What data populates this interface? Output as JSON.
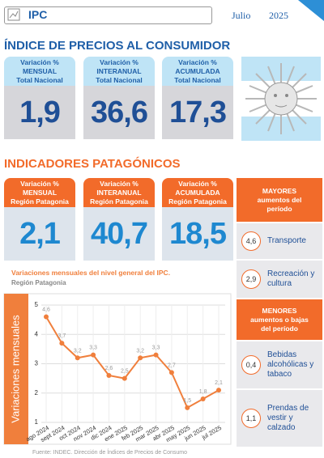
{
  "header": {
    "title": "IPC",
    "month": "Julio",
    "year": "2025"
  },
  "national": {
    "title": "ÍNDICE DE PRECIOS AL CONSUMIDOR",
    "cards": [
      {
        "lines": [
          "Variación %",
          "MENSUAL",
          "Total Nacional"
        ],
        "value": "1,9"
      },
      {
        "lines": [
          "Variación %",
          "INTERANUAL",
          "Total Nacional"
        ],
        "value": "36,6"
      },
      {
        "lines": [
          "Variación %",
          "ACUMULADA",
          "Total Nacional"
        ],
        "value": "17,3"
      }
    ]
  },
  "patagonia": {
    "title": "INDICADORES PATAGÓNICOS",
    "cards": [
      {
        "lines": [
          "Variación %",
          "MENSUAL",
          "Región Patagonia"
        ],
        "value": "2,1"
      },
      {
        "lines": [
          "Variación %",
          "INTERANUAL",
          "Región Patagonia"
        ],
        "value": "40,7"
      },
      {
        "lines": [
          "Variación %",
          "ACUMULADA",
          "Región Patagonia"
        ],
        "value": "18,5"
      }
    ]
  },
  "highlights": {
    "top": {
      "title": [
        "MAYORES",
        "aumentos del",
        "período"
      ],
      "items": [
        {
          "value": "4,6",
          "label": [
            "Transporte"
          ]
        },
        {
          "value": "2,9",
          "label": [
            "Recreación y",
            "cultura"
          ]
        }
      ]
    },
    "bottom": {
      "title": [
        "MENORES",
        "aumentos o bajas",
        "del período"
      ],
      "items": [
        {
          "value": "0,4",
          "label": [
            "Bebidas",
            "alcohólicas y",
            "tabaco"
          ]
        },
        {
          "value": "1,1",
          "label": [
            "Prendas de",
            "vestir y",
            "calzado"
          ]
        }
      ]
    }
  },
  "chart_data": {
    "type": "line",
    "title": "Variaciones mensuales del nivel general del IPC.",
    "subtitle": "Región Patagonia",
    "y_label": "Variaciones mensuales",
    "categories": [
      "ago 2024",
      "sept 2024",
      "oct 2024",
      "nov 2024",
      "dic 2024",
      "ene 2025",
      "feb 2025",
      "mar 2025",
      "abr 2025",
      "may 2025",
      "jun 2025",
      "jul 2025"
    ],
    "values": [
      4.6,
      3.7,
      3.2,
      3.3,
      2.6,
      2.5,
      3.2,
      3.3,
      2.7,
      1.5,
      1.8,
      2.1
    ],
    "value_labels": [
      "4,6",
      "3,7",
      "3,2",
      "3,3",
      "2,6",
      "2,5",
      "3,2",
      "3,3",
      "2,7",
      "1,5",
      "1,8",
      "2,1"
    ],
    "color": "#f07f3c",
    "ylim": [
      1,
      5
    ],
    "yticks": [
      1,
      2,
      3,
      4,
      5
    ],
    "grid": true
  },
  "source": "Fuente: INDEC. Dirección de Índices de Precios de Consumo"
}
